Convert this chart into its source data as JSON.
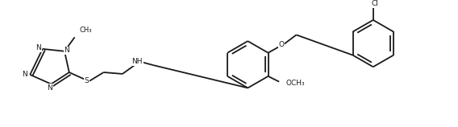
{
  "background": "#ffffff",
  "line_color": "#1a1a1a",
  "line_width": 1.3,
  "font_size": 6.5,
  "fig_width": 5.68,
  "fig_height": 1.58,
  "dpi": 100,
  "xlim": [
    0,
    568
  ],
  "ylim": [
    0,
    158
  ]
}
